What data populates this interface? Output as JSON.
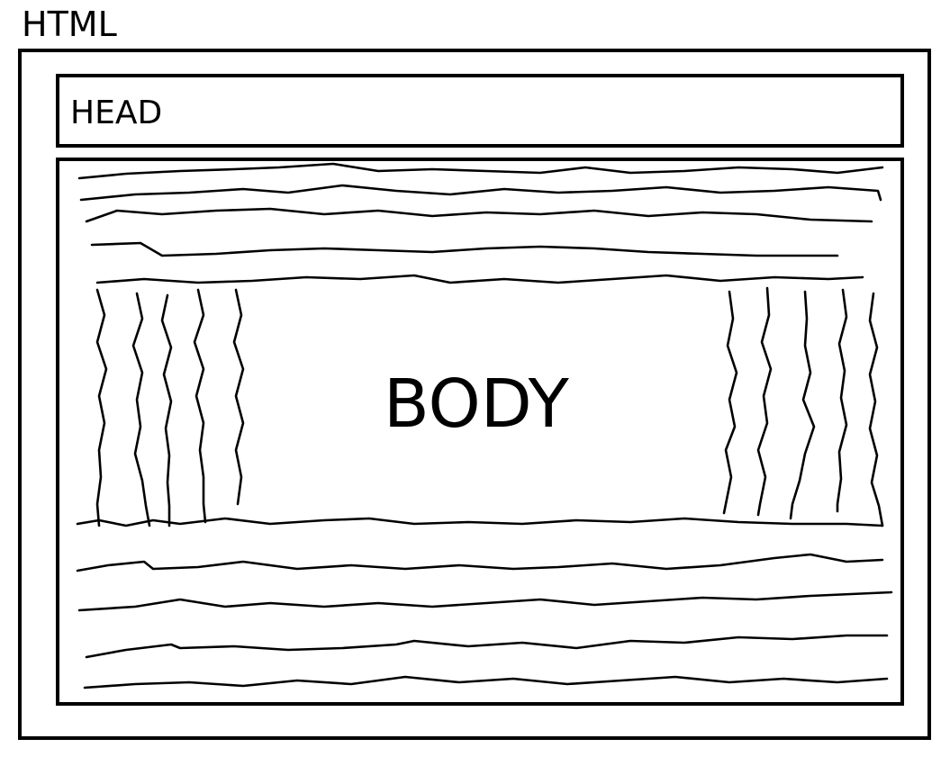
{
  "labels": {
    "html": "HTML",
    "head": "HEAD",
    "body": "BODY"
  },
  "colors": {
    "stroke": "#000000",
    "background": "#ffffff"
  }
}
